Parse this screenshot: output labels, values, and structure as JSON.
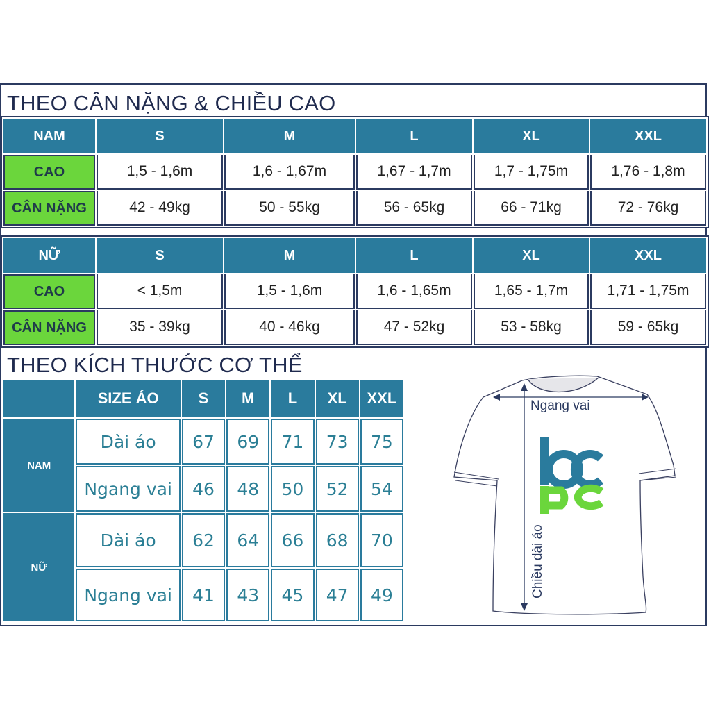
{
  "section1": {
    "title": "THEO CÂN NẶNG & CHIỀU CAO",
    "sizes": [
      "S",
      "M",
      "L",
      "XL",
      "XXL"
    ],
    "men": {
      "label": "NAM",
      "rows": [
        {
          "label": "CAO",
          "values": [
            "1,5 - 1,6m",
            "1,6 - 1,67m",
            "1,67 - 1,7m",
            "1,7 - 1,75m",
            "1,76 - 1,8m"
          ]
        },
        {
          "label": "CÂN NẶNG",
          "values": [
            "42 - 49kg",
            "50 - 55kg",
            "56 - 65kg",
            "66 - 71kg",
            "72 - 76kg"
          ]
        }
      ]
    },
    "women": {
      "label": "NỮ",
      "rows": [
        {
          "label": "CAO",
          "values": [
            "< 1,5m",
            "1,5 - 1,6m",
            "1,6 - 1,65m",
            "1,65 - 1,7m",
            "1,71 - 1,75m"
          ]
        },
        {
          "label": "CÂN NẶNG",
          "values": [
            "35 - 39kg",
            "40 - 46kg",
            "47 - 52kg",
            "53 - 58kg",
            "59 - 65kg"
          ]
        }
      ]
    }
  },
  "section2": {
    "title": "THEO KÍCH THƯỚC CƠ THỂ",
    "header": "SIZE ÁO",
    "sizes": [
      "S",
      "M",
      "L",
      "XL",
      "XXL"
    ],
    "groups": [
      {
        "label": "NAM",
        "rows": [
          {
            "label": "Dài áo",
            "values": [
              "67",
              "69",
              "71",
              "73",
              "75"
            ]
          },
          {
            "label": "Ngang vai",
            "values": [
              "46",
              "48",
              "50",
              "52",
              "54"
            ]
          }
        ]
      },
      {
        "label": "NỮ",
        "rows": [
          {
            "label": "Dài áo",
            "values": [
              "62",
              "64",
              "66",
              "68",
              "70"
            ]
          },
          {
            "label": "Ngang vai",
            "values": [
              "41",
              "43",
              "45",
              "47",
              "49"
            ]
          }
        ]
      }
    ]
  },
  "diagram": {
    "shoulder_label": "Ngang vai",
    "length_label": "Chiều dài áo",
    "logo_text": "bcpc"
  },
  "colors": {
    "header_teal": "#2a7b9d",
    "label_green": "#6bd63c",
    "border_navy": "#2b3a60",
    "number_teal": "#2b7f95",
    "logo_blue": "#2a7b9d",
    "logo_green": "#6bd63c"
  }
}
